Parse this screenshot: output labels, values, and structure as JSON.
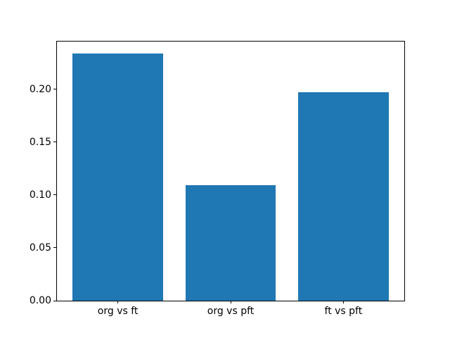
{
  "figure": {
    "background_color": "#ffffff",
    "spine_color": "#000000",
    "tick_color": "#000000"
  },
  "chart_data": {
    "type": "bar",
    "title": "",
    "xlabel": "",
    "ylabel": "",
    "categories": [
      "org vs ft",
      "org vs pft",
      "ft vs pft"
    ],
    "values": [
      0.234,
      0.109,
      0.197
    ],
    "bar_color": "#1f77b4",
    "ylim": [
      0,
      0.245
    ],
    "yticks": [
      0.0,
      0.05,
      0.1,
      0.15,
      0.2
    ],
    "ytick_labels": [
      "0.00",
      "0.05",
      "0.10",
      "0.15",
      "0.20"
    ],
    "grid": false,
    "legend": null
  }
}
